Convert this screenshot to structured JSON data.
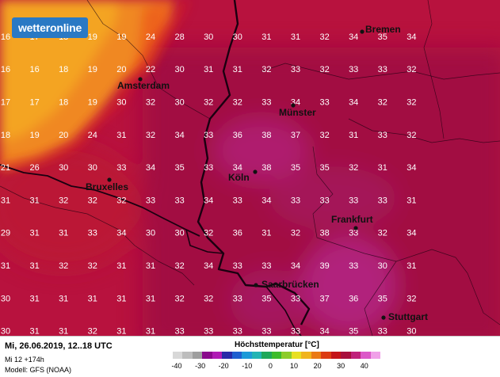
{
  "logo": {
    "text": "wetteronline"
  },
  "footer": {
    "date": "Mi, 26.06.2019, 12..18 UTC",
    "run": "Mi 12 +174h",
    "model": "Modell: GFS (NOAA)"
  },
  "legend": {
    "title": "Höchsttemperatur [°C]",
    "ticks": [
      "-40",
      "-30",
      "-20",
      "-10",
      "0",
      "10",
      "20",
      "30",
      "40"
    ],
    "colors": [
      "#d8d8d8",
      "#bdbdbd",
      "#9e9e9e",
      "#8a0a8c",
      "#b01ab4",
      "#2a2aa8",
      "#1f5fd0",
      "#1c9ad8",
      "#22b4b4",
      "#1ea85a",
      "#3cbc2c",
      "#8ccc2a",
      "#e8e022",
      "#f0b41c",
      "#ea7a14",
      "#dc3c12",
      "#c41418",
      "#a80e3c",
      "#c0207a",
      "#dc58c8",
      "#f0a0e8"
    ]
  },
  "cities": [
    {
      "name": "Bremen"
    },
    {
      "name": "Amsterdam"
    },
    {
      "name": "Münster"
    },
    {
      "name": "Bruxelles"
    },
    {
      "name": "Köln"
    },
    {
      "name": "Frankfurt"
    },
    {
      "name": "Saarbrücken"
    },
    {
      "name": "Stuttgart"
    }
  ],
  "grid_values": [
    [
      "16",
      "17",
      "18",
      "19",
      "19",
      "24",
      "28",
      "30",
      "30",
      "31",
      "31",
      "32",
      "34",
      "35",
      "34"
    ],
    [
      "16",
      "16",
      "18",
      "19",
      "20",
      "22",
      "30",
      "31",
      "31",
      "32",
      "33",
      "32",
      "33",
      "33",
      "32"
    ],
    [
      "17",
      "17",
      "18",
      "19",
      "30",
      "32",
      "30",
      "32",
      "32",
      "33",
      "34",
      "33",
      "34",
      "32",
      "32"
    ],
    [
      "18",
      "19",
      "20",
      "24",
      "31",
      "32",
      "34",
      "33",
      "36",
      "38",
      "37",
      "32",
      "31",
      "33",
      "32"
    ],
    [
      "21",
      "26",
      "30",
      "30",
      "33",
      "34",
      "35",
      "33",
      "34",
      "38",
      "35",
      "35",
      "32",
      "31",
      "34"
    ],
    [
      "31",
      "31",
      "32",
      "32",
      "32",
      "33",
      "33",
      "34",
      "33",
      "34",
      "33",
      "33",
      "33",
      "33",
      "31"
    ],
    [
      "29",
      "31",
      "31",
      "33",
      "34",
      "30",
      "30",
      "32",
      "36",
      "31",
      "32",
      "38",
      "33",
      "32",
      "34"
    ],
    [
      "31",
      "31",
      "32",
      "32",
      "31",
      "31",
      "32",
      "34",
      "33",
      "33",
      "34",
      "39",
      "33",
      "30",
      "31"
    ],
    [
      "30",
      "31",
      "31",
      "31",
      "31",
      "31",
      "32",
      "32",
      "33",
      "35",
      "33",
      "37",
      "36",
      "35",
      "32"
    ],
    [
      "30",
      "31",
      "31",
      "32",
      "31",
      "31",
      "33",
      "33",
      "33",
      "33",
      "33",
      "34",
      "35",
      "33",
      "30"
    ]
  ]
}
